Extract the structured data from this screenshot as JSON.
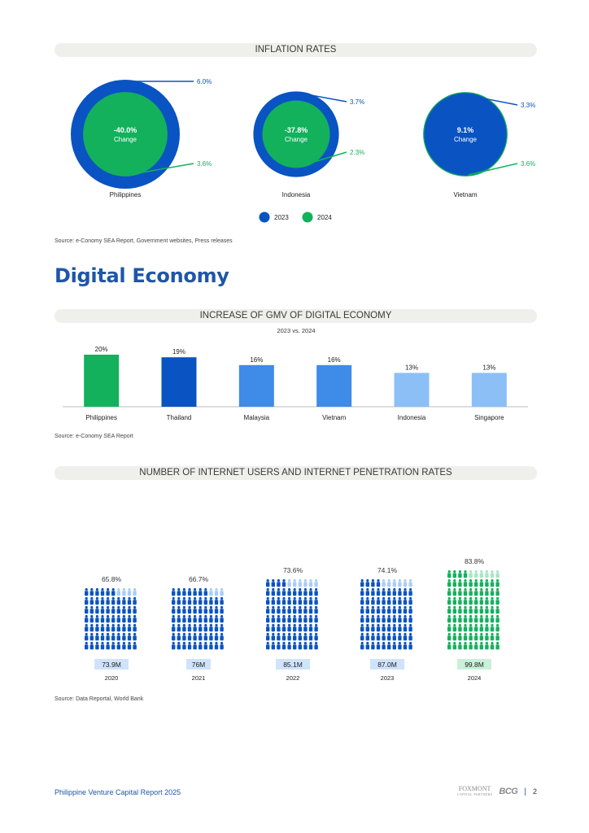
{
  "colors": {
    "blue2023": "#0a53c2",
    "green2024": "#13b15c",
    "gmvBlueDark": "#0a53c2",
    "gmvBlueMid": "#3e8be8",
    "gmvBlueLight": "#8cbff6"
  },
  "inflation": {
    "title": "INFLATION RATES",
    "legend": [
      {
        "label": "2023"
      },
      {
        "label": "2024"
      }
    ],
    "countries": [
      {
        "name": "Philippines",
        "change": "-40.0%",
        "change_label": "Change",
        "rate_2023": 6.0,
        "rate_2024": 3.6,
        "label_2023": "6.0%",
        "label_2024": "3.6%"
      },
      {
        "name": "Indonesia",
        "change": "-37.8%",
        "change_label": "Change",
        "rate_2023": 3.7,
        "rate_2024": 2.3,
        "label_2023": "3.7%",
        "label_2024": "2.3%"
      },
      {
        "name": "Vietnam",
        "change": "9.1%",
        "change_label": "Change",
        "rate_2023": 3.3,
        "rate_2024": 3.6,
        "label_2023": "3.3%",
        "label_2024": "3.6%"
      }
    ],
    "source": "Source: e-Conomy SEA Report, Government websites, Press releases"
  },
  "heading": "Digital Economy",
  "gmv": {
    "title": "INCREASE OF GMV OF DIGITAL ECONOMY",
    "subtitle": "2023 vs. 2024",
    "source": "Source: e-Conomy SEA Report",
    "chart_data": {
      "type": "bar",
      "categories": [
        "Philippines",
        "Thailand",
        "Malaysia",
        "Vietnam",
        "Indonesia",
        "Singapore"
      ],
      "values": [
        20,
        19,
        16,
        16,
        13,
        13
      ],
      "labels": [
        "20%",
        "19%",
        "16%",
        "16%",
        "13%",
        "13%"
      ],
      "bar_colors": [
        "#13b15c",
        "#0a53c2",
        "#3e8be8",
        "#3e8be8",
        "#8cbff6",
        "#8cbff6"
      ],
      "ylim": [
        0,
        20
      ]
    }
  },
  "internet": {
    "title": "NUMBER OF INTERNET USERS AND INTERNET PENETRATION RATES",
    "source": "Source: Data Reportal, World Bank",
    "chart_data": {
      "type": "pictogram",
      "x": [
        "2020",
        "2021",
        "2022",
        "2023",
        "2024"
      ],
      "users": [
        "73.9M",
        "76M",
        "85.1M",
        "87.0M",
        "99.8M"
      ],
      "penetration": [
        65.8,
        66.7,
        73.6,
        74.1,
        83.8
      ],
      "penetration_labels": [
        "65.8%",
        "66.7%",
        "73.6%",
        "74.1%",
        "83.8%"
      ]
    }
  },
  "footer": {
    "report": "Philippine Venture Capital Report 2025",
    "foxmont": "FOXMONT",
    "foxmont_sub": "CAPITAL PARTNERS",
    "bcg": "BCG",
    "separator": "|",
    "page": "2"
  }
}
